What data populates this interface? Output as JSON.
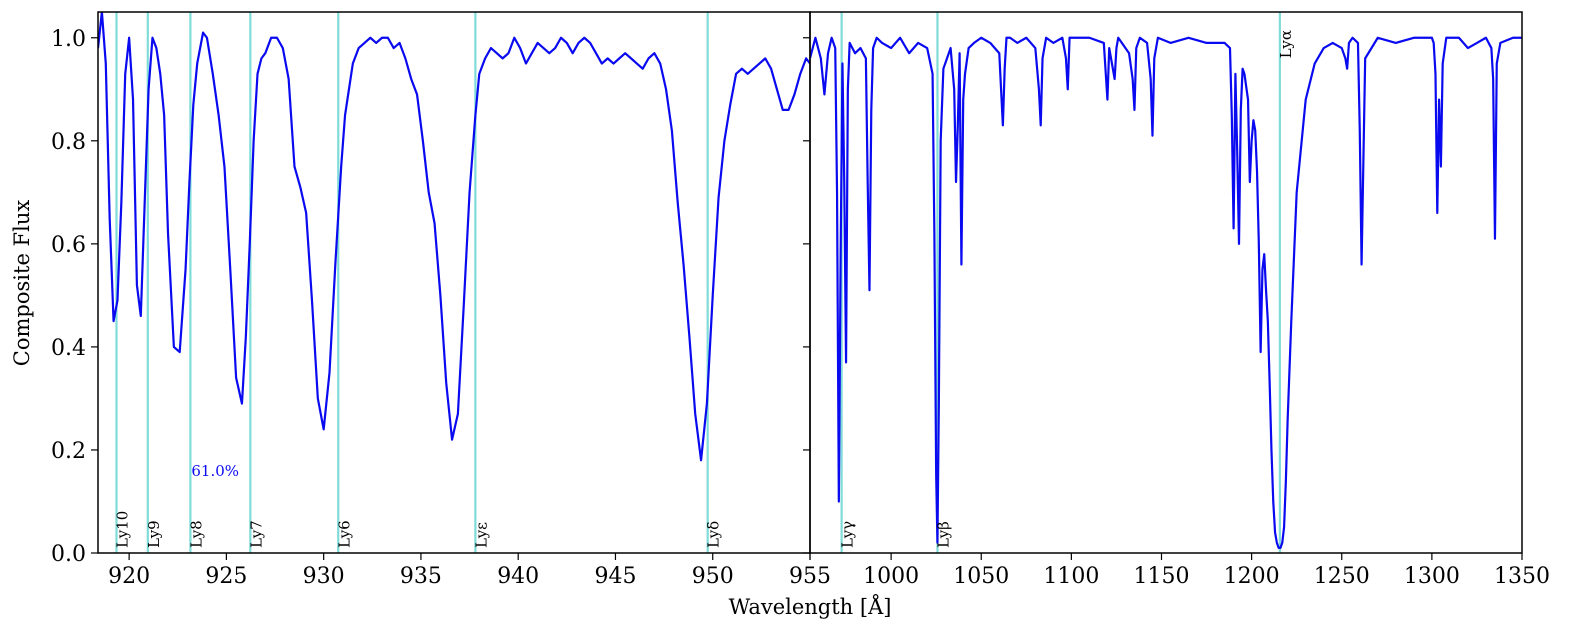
{
  "chart_data": [
    {
      "type": "line",
      "panel": "left",
      "xlim": [
        918.4,
        955
      ],
      "ylim": [
        0,
        1.05
      ],
      "x_ticks": [
        920,
        925,
        930,
        935,
        940,
        945,
        950,
        955
      ],
      "y_ticks": [
        0.0,
        0.2,
        0.4,
        0.6,
        0.8,
        1.0
      ],
      "ylabel": "Composite Flux",
      "annotation": "61.0%",
      "series": [
        {
          "color": "#0a0af0",
          "x": [
            918.4,
            918.6,
            918.8,
            919.0,
            919.2,
            919.4,
            919.6,
            919.8,
            920.0,
            920.2,
            920.4,
            920.6,
            920.8,
            921.0,
            921.2,
            921.4,
            921.6,
            921.8,
            922.0,
            922.3,
            922.6,
            922.9,
            923.1,
            923.3,
            923.5,
            923.8,
            924.0,
            924.3,
            924.6,
            924.9,
            925.2,
            925.5,
            925.8,
            926.0,
            926.2,
            926.4,
            926.6,
            926.8,
            927.0,
            927.3,
            927.6,
            927.9,
            928.2,
            928.5,
            928.8,
            929.1,
            929.4,
            929.7,
            930.0,
            930.3,
            930.6,
            930.9,
            931.1,
            931.3,
            931.5,
            931.8,
            932.1,
            932.4,
            932.7,
            933.0,
            933.3,
            933.6,
            933.9,
            934.2,
            934.5,
            934.8,
            935.1,
            935.4,
            935.7,
            936.0,
            936.3,
            936.6,
            936.9,
            937.2,
            937.5,
            937.8,
            938.0,
            938.3,
            938.6,
            938.9,
            939.2,
            939.5,
            939.8,
            940.1,
            940.4,
            940.7,
            941.0,
            941.3,
            941.6,
            941.9,
            942.2,
            942.5,
            942.8,
            943.1,
            943.4,
            943.7,
            944.0,
            944.3,
            944.6,
            944.9,
            945.2,
            945.5,
            945.8,
            946.1,
            946.4,
            946.7,
            947.0,
            947.3,
            947.6,
            947.9,
            948.2,
            948.5,
            948.8,
            949.1,
            949.4,
            949.7,
            950.0,
            950.3,
            950.6,
            950.9,
            951.2,
            951.5,
            951.8,
            952.1,
            952.4,
            952.7,
            953.0,
            953.3,
            953.6,
            953.9,
            954.2,
            954.5,
            954.8,
            955.0
          ],
          "y": [
            0.98,
            1.05,
            0.95,
            0.65,
            0.45,
            0.49,
            0.68,
            0.93,
            1.0,
            0.88,
            0.52,
            0.46,
            0.68,
            0.9,
            1.0,
            0.98,
            0.93,
            0.85,
            0.62,
            0.4,
            0.39,
            0.55,
            0.72,
            0.87,
            0.95,
            1.01,
            1.0,
            0.93,
            0.85,
            0.75,
            0.55,
            0.34,
            0.29,
            0.42,
            0.6,
            0.8,
            0.93,
            0.96,
            0.97,
            1.0,
            1.0,
            0.98,
            0.92,
            0.75,
            0.71,
            0.66,
            0.49,
            0.3,
            0.24,
            0.35,
            0.56,
            0.75,
            0.85,
            0.9,
            0.95,
            0.98,
            0.99,
            1.0,
            0.99,
            1.0,
            1.0,
            0.98,
            0.99,
            0.96,
            0.92,
            0.89,
            0.8,
            0.7,
            0.64,
            0.5,
            0.33,
            0.22,
            0.27,
            0.48,
            0.7,
            0.85,
            0.93,
            0.96,
            0.98,
            0.97,
            0.96,
            0.97,
            1.0,
            0.98,
            0.95,
            0.97,
            0.99,
            0.98,
            0.97,
            0.98,
            1.0,
            0.99,
            0.97,
            0.99,
            1.0,
            0.99,
            0.97,
            0.95,
            0.96,
            0.95,
            0.96,
            0.97,
            0.96,
            0.95,
            0.94,
            0.96,
            0.97,
            0.95,
            0.9,
            0.82,
            0.68,
            0.56,
            0.42,
            0.27,
            0.18,
            0.29,
            0.5,
            0.69,
            0.8,
            0.87,
            0.93,
            0.94,
            0.93,
            0.94,
            0.95,
            0.96,
            0.94,
            0.9,
            0.86,
            0.86,
            0.89,
            0.93,
            0.96,
            0.95
          ]
        }
      ],
      "vlines": [
        {
          "x": 919.35,
          "label": "Ly10"
        },
        {
          "x": 920.96,
          "label": "Ly9"
        },
        {
          "x": 923.15,
          "label": "Ly8"
        },
        {
          "x": 926.23,
          "label": "Ly7"
        },
        {
          "x": 930.75,
          "label": "Ly6"
        },
        {
          "x": 937.8,
          "label": "Lyε"
        },
        {
          "x": 949.74,
          "label": "Lyδ"
        }
      ]
    },
    {
      "type": "line",
      "panel": "right",
      "xlim": [
        955,
        1350
      ],
      "ylim": [
        0,
        1.05
      ],
      "x_ticks": [
        955,
        1000,
        1050,
        1100,
        1150,
        1200,
        1250,
        1300,
        1350
      ],
      "y_ticks": [
        0.0,
        0.2,
        0.4,
        0.6,
        0.8,
        1.0
      ],
      "series": [
        {
          "color": "#0a0af0",
          "x": [
            955,
            958,
            961,
            963,
            965,
            967,
            969,
            970,
            971,
            972,
            973,
            974,
            975,
            976,
            977,
            980,
            983,
            986,
            987,
            988,
            989,
            990,
            992,
            995,
            1000,
            1005,
            1010,
            1015,
            1020,
            1023,
            1024,
            1025,
            1025.7,
            1026.5,
            1027.5,
            1029,
            1031,
            1033,
            1035,
            1036,
            1037,
            1038,
            1039,
            1040,
            1041,
            1043,
            1046,
            1050,
            1055,
            1060,
            1062,
            1063,
            1064,
            1066,
            1070,
            1075,
            1080,
            1082,
            1083,
            1084,
            1086,
            1090,
            1095,
            1097,
            1098,
            1099,
            1102,
            1110,
            1118,
            1120,
            1121,
            1122,
            1124,
            1125,
            1126,
            1128,
            1132,
            1134,
            1135,
            1136,
            1138,
            1142,
            1144,
            1145,
            1146,
            1148,
            1155,
            1165,
            1175,
            1185,
            1188,
            1189,
            1190,
            1191,
            1192,
            1193,
            1194,
            1195,
            1196,
            1198,
            1199,
            1200,
            1201,
            1202,
            1203,
            1204,
            1205,
            1206,
            1207,
            1208,
            1209,
            1210,
            1211,
            1212,
            1213,
            1214,
            1215,
            1216,
            1217,
            1218,
            1219,
            1220,
            1222,
            1225,
            1230,
            1235,
            1240,
            1245,
            1250,
            1252,
            1253,
            1254,
            1256,
            1259,
            1260,
            1261,
            1263,
            1270,
            1280,
            1290,
            1300,
            1301,
            1302,
            1303,
            1304,
            1305,
            1306,
            1308,
            1315,
            1320,
            1325,
            1330,
            1333,
            1334,
            1335,
            1336,
            1338,
            1345,
            1350
          ],
          "y": [
            0.96,
            1.0,
            0.96,
            0.89,
            0.97,
            1.0,
            0.98,
            0.7,
            0.1,
            0.58,
            0.95,
            0.72,
            0.37,
            0.9,
            0.99,
            0.97,
            0.98,
            0.96,
            0.72,
            0.51,
            0.86,
            0.98,
            1.0,
            0.99,
            0.98,
            1.0,
            0.97,
            0.99,
            0.98,
            0.93,
            0.62,
            0.15,
            0.02,
            0.3,
            0.8,
            0.94,
            0.96,
            0.98,
            0.9,
            0.72,
            0.83,
            0.97,
            0.56,
            0.88,
            0.93,
            0.98,
            0.99,
            1.0,
            0.99,
            0.97,
            0.83,
            0.94,
            1.0,
            1.0,
            0.99,
            1.0,
            0.98,
            0.9,
            0.83,
            0.96,
            1.0,
            0.99,
            1.0,
            0.96,
            0.9,
            1.0,
            1.0,
            1.0,
            0.99,
            0.88,
            0.98,
            0.96,
            0.92,
            0.98,
            1.0,
            0.99,
            0.97,
            0.92,
            0.86,
            0.98,
            1.0,
            0.99,
            0.92,
            0.81,
            0.96,
            1.0,
            0.99,
            1.0,
            0.99,
            0.99,
            0.98,
            0.85,
            0.63,
            0.93,
            0.78,
            0.6,
            0.86,
            0.94,
            0.93,
            0.88,
            0.72,
            0.8,
            0.84,
            0.82,
            0.74,
            0.6,
            0.39,
            0.55,
            0.58,
            0.51,
            0.45,
            0.33,
            0.2,
            0.1,
            0.04,
            0.02,
            0.01,
            0.01,
            0.02,
            0.05,
            0.14,
            0.26,
            0.45,
            0.7,
            0.88,
            0.95,
            0.98,
            0.99,
            0.98,
            0.96,
            0.94,
            0.99,
            1.0,
            0.99,
            0.82,
            0.56,
            0.96,
            1.0,
            0.99,
            1.0,
            1.0,
            0.99,
            0.93,
            0.66,
            0.88,
            0.75,
            0.95,
            1.0,
            1.0,
            0.98,
            0.99,
            1.0,
            0.98,
            0.92,
            0.61,
            0.95,
            0.99,
            1.0,
            1.0
          ]
        }
      ],
      "vlines": [
        {
          "x": 972.54,
          "label": "Lyγ"
        },
        {
          "x": 1025.72,
          "label": "Lyβ"
        },
        {
          "x": 1215.67,
          "label": "Lyα"
        }
      ]
    }
  ],
  "xlabel": "Wavelength [Å]"
}
